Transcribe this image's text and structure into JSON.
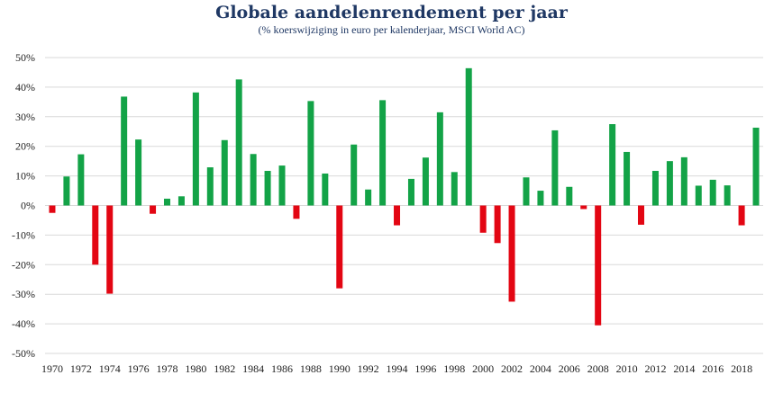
{
  "chart_data": {
    "type": "bar",
    "title": "Globale aandelenrendement per jaar",
    "subtitle": "(% koerswijziging in euro per kalenderjaar, MSCI World AC)",
    "xlabel": "",
    "ylabel": "",
    "ylim": [
      -50,
      50
    ],
    "yticks": [
      50,
      40,
      30,
      20,
      10,
      0,
      -10,
      -20,
      -30,
      -40,
      -50
    ],
    "ytick_labels": [
      "50%",
      "40%",
      "30%",
      "20%",
      "10%",
      "0%",
      "-10%",
      "-20%",
      "-30%",
      "-40%",
      "-50%"
    ],
    "xtick_labels": [
      "1970",
      "1972",
      "1974",
      "1976",
      "1978",
      "1980",
      "1982",
      "1984",
      "1986",
      "1988",
      "1990",
      "1992",
      "1994",
      "1996",
      "1998",
      "2000",
      "2002",
      "2004",
      "2006",
      "2008",
      "2010",
      "2012",
      "2014",
      "2016",
      "2018"
    ],
    "grid": true,
    "colors": {
      "positive": "#13a347",
      "negative": "#e30613",
      "grid": "#d9d9d9",
      "title": "#1f3864"
    },
    "categories": [
      "1970",
      "1971",
      "1972",
      "1973",
      "1974",
      "1975",
      "1976",
      "1977",
      "1978",
      "1979",
      "1980",
      "1981",
      "1982",
      "1983",
      "1984",
      "1985",
      "1986",
      "1987",
      "1988",
      "1989",
      "1990",
      "1991",
      "1992",
      "1993",
      "1994",
      "1995",
      "1996",
      "1997",
      "1998",
      "1999",
      "2000",
      "2001",
      "2002",
      "2003",
      "2004",
      "2005",
      "2006",
      "2007",
      "2008",
      "2009",
      "2010",
      "2011",
      "2012",
      "2013",
      "2014",
      "2015",
      "2016",
      "2017",
      "2018",
      "2019"
    ],
    "values": [
      -2.5,
      9.8,
      17.3,
      -20.0,
      -29.8,
      36.8,
      22.3,
      -2.8,
      2.3,
      3.1,
      38.2,
      12.9,
      22.1,
      42.6,
      17.4,
      11.7,
      13.5,
      -4.5,
      35.3,
      10.8,
      -28.0,
      20.6,
      5.4,
      35.6,
      -6.7,
      9.0,
      16.2,
      31.5,
      11.3,
      46.4,
      -9.2,
      -12.7,
      -32.5,
      9.5,
      5.0,
      25.4,
      6.3,
      -1.2,
      -40.5,
      27.5,
      18.1,
      -6.5,
      11.7,
      15.0,
      16.3,
      6.7,
      8.7,
      6.8,
      -6.7,
      26.3
    ]
  }
}
